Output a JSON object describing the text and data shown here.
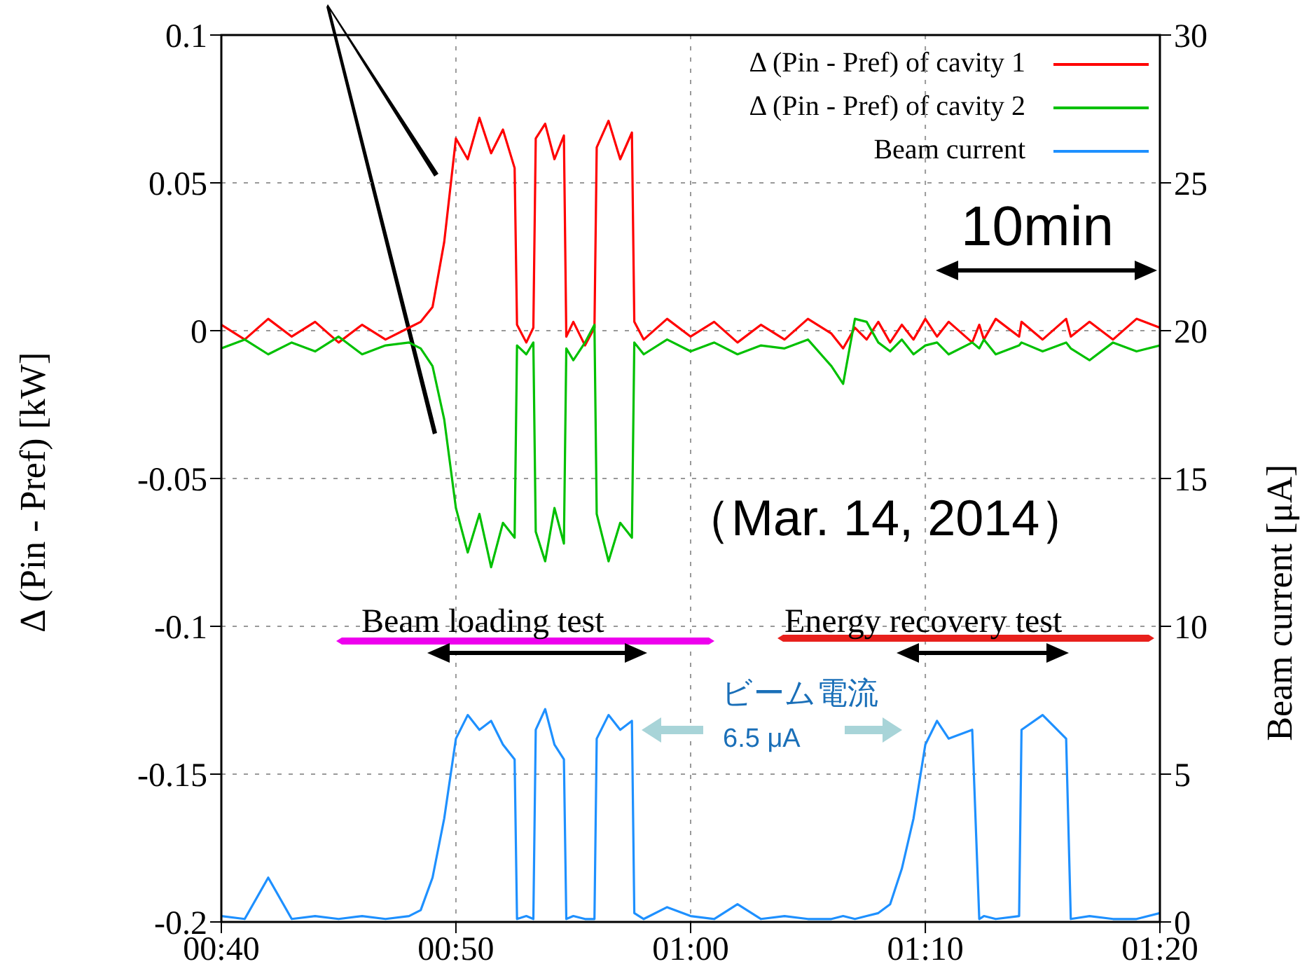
{
  "chart_data": {
    "type": "line",
    "xlabel": null,
    "ylabel": "Δ (Pin - Pref) [kW]",
    "y2label": "Beam current [μA]",
    "x": [
      0.6667,
      0.6833,
      0.7,
      0.7167,
      0.7333,
      0.75,
      0.7667,
      0.7833,
      0.8,
      0.8083,
      0.8167,
      0.825,
      0.8333,
      0.8417,
      0.85,
      0.8583,
      0.8667,
      0.875,
      0.8767,
      0.8833,
      0.8883,
      0.89,
      0.8967,
      0.9033,
      0.91,
      0.9117,
      0.9167,
      0.925,
      0.9317,
      0.9333,
      0.9417,
      0.95,
      0.9583,
      0.96,
      0.9667,
      0.9833,
      1.0,
      1.0167,
      1.0333,
      1.05,
      1.0667,
      1.0833,
      1.1,
      1.1083,
      1.1167,
      1.125,
      1.1333,
      1.1417,
      1.15,
      1.1583,
      1.1667,
      1.175,
      1.1833,
      1.2,
      1.205,
      1.2083,
      1.2167,
      1.2333,
      1.235,
      1.25,
      1.2667,
      1.27,
      1.2833,
      1.3,
      1.3167,
      1.3333
    ],
    "series": [
      {
        "name": "Δ (Pin - Pref) of cavity 1",
        "color": "#ff0000",
        "values": [
          0.002,
          -0.003,
          0.004,
          -0.002,
          0.003,
          -0.004,
          0.002,
          -0.003,
          0.001,
          0.003,
          0.008,
          0.03,
          0.065,
          0.058,
          0.072,
          0.06,
          0.068,
          0.055,
          0.002,
          -0.004,
          0.001,
          0.065,
          0.07,
          0.058,
          0.066,
          -0.002,
          0.003,
          -0.005,
          0.001,
          0.062,
          0.071,
          0.058,
          0.067,
          0.003,
          -0.003,
          0.004,
          -0.002,
          0.003,
          -0.004,
          0.002,
          -0.003,
          0.004,
          -0.001,
          -0.006,
          0.001,
          -0.003,
          0.003,
          -0.004,
          0.002,
          -0.003,
          0.004,
          -0.002,
          0.003,
          -0.004,
          0.002,
          -0.003,
          0.004,
          -0.002,
          0.003,
          -0.003,
          0.004,
          -0.002,
          0.003,
          -0.003,
          0.004,
          0.001
        ]
      },
      {
        "name": "Δ (Pin - Pref) of cavity 2",
        "color": "#00c000",
        "values": [
          -0.006,
          -0.003,
          -0.008,
          -0.004,
          -0.007,
          -0.002,
          -0.008,
          -0.005,
          -0.004,
          -0.006,
          -0.012,
          -0.03,
          -0.06,
          -0.075,
          -0.062,
          -0.08,
          -0.065,
          -0.07,
          -0.005,
          -0.008,
          -0.004,
          -0.068,
          -0.078,
          -0.06,
          -0.072,
          -0.006,
          -0.01,
          -0.004,
          0.002,
          -0.062,
          -0.078,
          -0.065,
          -0.07,
          -0.004,
          -0.008,
          -0.003,
          -0.007,
          -0.004,
          -0.008,
          -0.005,
          -0.006,
          -0.003,
          -0.012,
          -0.018,
          0.004,
          0.003,
          -0.004,
          -0.007,
          -0.003,
          -0.008,
          -0.005,
          -0.004,
          -0.008,
          -0.004,
          -0.006,
          -0.003,
          -0.008,
          -0.005,
          -0.004,
          -0.007,
          -0.004,
          -0.006,
          -0.01,
          -0.004,
          -0.007,
          -0.005
        ]
      },
      {
        "name": "Beam current",
        "color": "#1e90ff",
        "axis": "y2",
        "values": [
          0.2,
          0.1,
          1.5,
          0.1,
          0.2,
          0.1,
          0.2,
          0.1,
          0.2,
          0.4,
          1.5,
          3.5,
          6.2,
          7,
          6.5,
          6.8,
          6,
          5.5,
          0.1,
          0.2,
          0.1,
          6.5,
          7.2,
          6,
          5.5,
          0.1,
          0.2,
          0.1,
          0.1,
          6.2,
          7,
          6.5,
          6.8,
          0.3,
          0.1,
          0.5,
          0.2,
          0.1,
          0.6,
          0.1,
          0.2,
          0.1,
          0.1,
          0.2,
          0.1,
          0.2,
          0.3,
          0.6,
          1.8,
          3.5,
          6,
          6.8,
          6.2,
          6.5,
          0.1,
          0.2,
          0.1,
          0.2,
          6.5,
          7,
          6.2,
          0.1,
          0.2,
          0.1,
          0.1,
          0.3
        ]
      }
    ],
    "xlim": [
      0.6667,
      1.3333
    ],
    "xticks": [
      {
        "value": 0.6667,
        "label": "00:40"
      },
      {
        "value": 0.8333,
        "label": "00:50"
      },
      {
        "value": 1.0,
        "label": "01:00"
      },
      {
        "value": 1.1667,
        "label": "01:10"
      },
      {
        "value": 1.3333,
        "label": "01:20"
      }
    ],
    "ylim": [
      -0.2,
      0.1
    ],
    "yticks": [
      -0.2,
      -0.15,
      -0.1,
      -0.05,
      0,
      0.05,
      0.1
    ],
    "y2lim": [
      0,
      30
    ],
    "y2ticks": [
      0,
      5,
      10,
      15,
      20,
      25,
      30
    ],
    "grid": true,
    "legend": "top right",
    "marker": "none",
    "line_style": "solid",
    "annotations": [
      "10min",
      "（Mar. 14, 2014）",
      "Beam loading test",
      "Energy recovery test",
      "ビーム電流",
      "6.5 μA"
    ]
  }
}
